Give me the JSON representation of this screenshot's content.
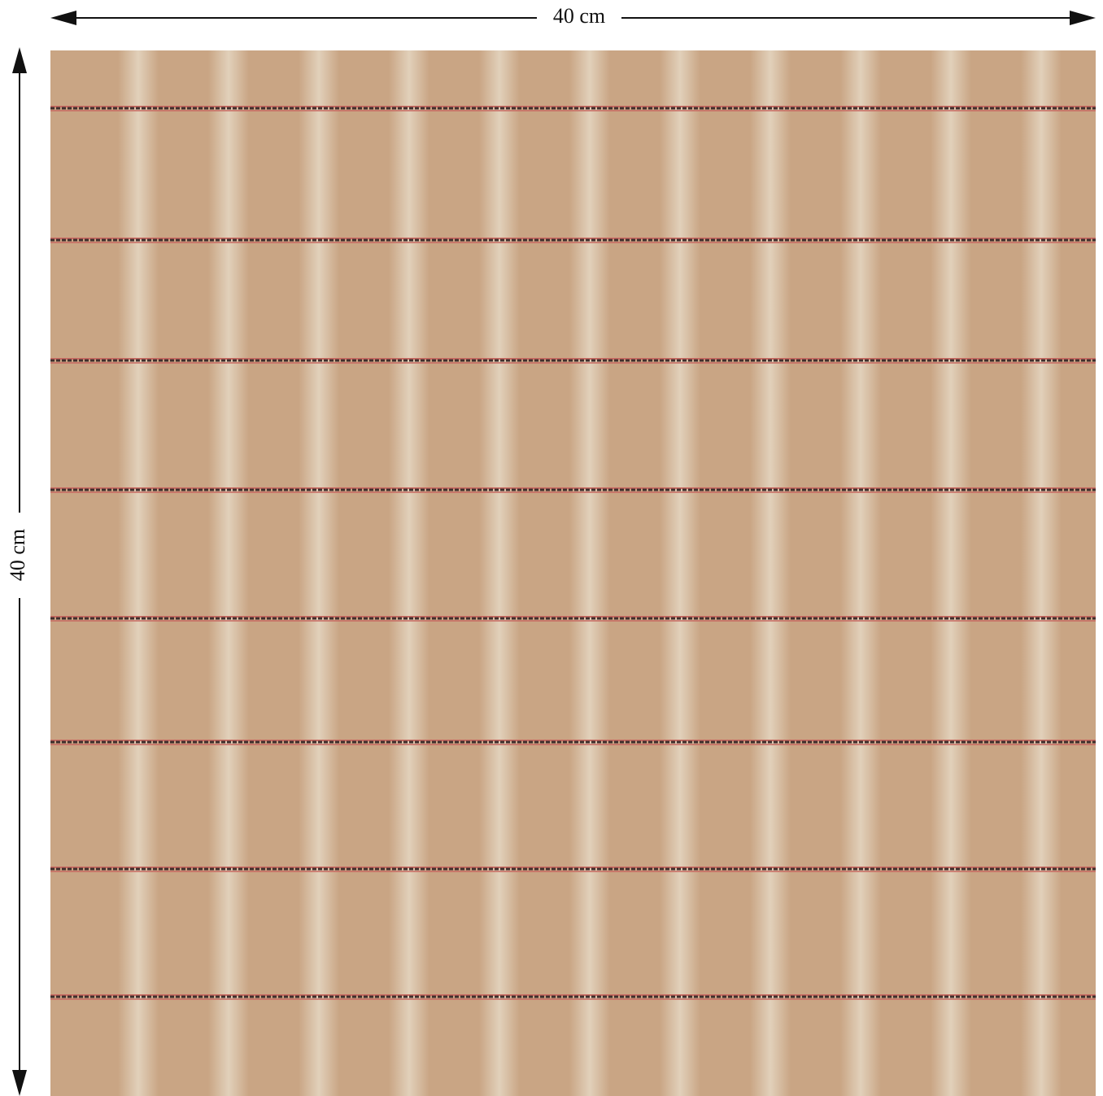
{
  "dimensions": {
    "width": "40 cm",
    "height": "40 cm"
  }
}
